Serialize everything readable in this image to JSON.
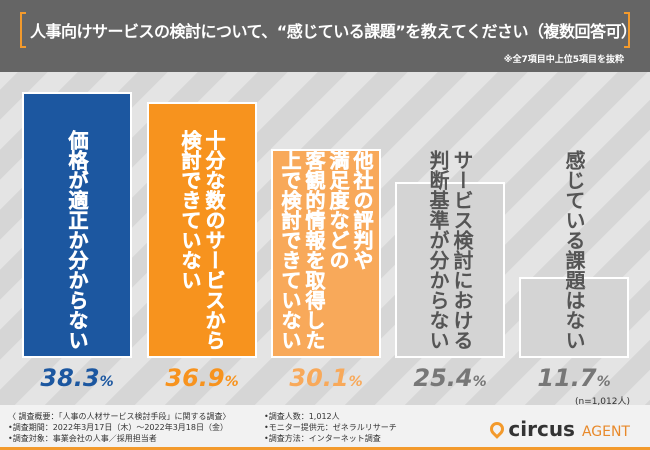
{
  "chart_data": {
    "type": "bar",
    "title": "人事向けサービスの検討について、“感じている課題”を教えてください（複数回答可）",
    "subtitle": "※全7項目中上位5項目を抜粋",
    "categories": [
      "価格が適正か分からない",
      "十分な数のサービスから\n検討できていない",
      "他社の評判や\n満足度などの\n客観的情報を取得した\n上で検討できていない",
      "サービス検討における\n判断基準が分からない",
      "感じている課題はない"
    ],
    "values": [
      38.3,
      36.9,
      30.1,
      25.4,
      11.7
    ],
    "value_labels": [
      [
        "38.3",
        "%"
      ],
      [
        "36.9",
        "%"
      ],
      [
        "30.1",
        "%"
      ],
      [
        "25.4",
        "%"
      ],
      [
        "11.7",
        "%"
      ]
    ],
    "colors": [
      "#1c57a0",
      "#f7931e",
      "#f8a95a",
      "#d4d4d4",
      "#d4d4d4"
    ],
    "label_colors": [
      "#1c57a0",
      "#f7931e",
      "#f8a95a",
      "#777777",
      "#777777"
    ],
    "ylim": [
      0,
      45
    ],
    "sample": "(n=1,012人)"
  },
  "footer": {
    "col1": "〈 調査概要：「人事の人材サービス検討手段」に関する調査〉\n•調査期間：2022年3月17日（木）～2022年3月18日（金）\n•調査対象：事業会社の人事／採用担当者",
    "col2": "•調査人数：1,012人\n•モニター提供元：ゼネラルリサーチ\n•調査方法：インターネット調査",
    "logo_main": "circus",
    "logo_sub": "AGENT"
  }
}
